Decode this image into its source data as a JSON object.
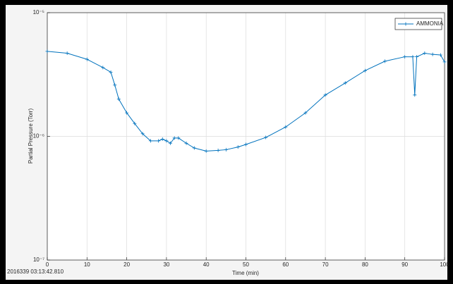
{
  "chart_data": {
    "type": "line",
    "xlabel": "Time (min)",
    "ylabel": "Partial Pressure (Torr)",
    "annotation": "2016339 03:13:42.810",
    "x": [
      0,
      5,
      10,
      14,
      16,
      17,
      18,
      20,
      22,
      24,
      26,
      28,
      29,
      30,
      31,
      32,
      33,
      35,
      37,
      40,
      43,
      45,
      48,
      50,
      55,
      60,
      65,
      70,
      75,
      80,
      85,
      90,
      92,
      92.5,
      93,
      95,
      97,
      99,
      100
    ],
    "series": [
      {
        "name": "AMMONIA",
        "color": "#0072bd",
        "values": [
          4.87e-06,
          4.7e-06,
          4.2e-06,
          3.6e-06,
          3.3e-06,
          2.6e-06,
          2e-06,
          1.55e-06,
          1.27e-06,
          1.05e-06,
          9.2e-07,
          9.2e-07,
          9.5e-07,
          9.2e-07,
          8.8e-07,
          9.7e-07,
          9.7e-07,
          8.8e-07,
          8.05e-07,
          7.6e-07,
          7.7e-07,
          7.8e-07,
          8.2e-07,
          8.6e-07,
          9.8e-07,
          1.19e-06,
          1.55e-06,
          2.16e-06,
          2.7e-06,
          3.4e-06,
          4.05e-06,
          4.4e-06,
          4.4e-06,
          2.16e-06,
          4.4e-06,
          4.7e-06,
          4.6e-06,
          4.55e-06,
          4e-06
        ]
      }
    ],
    "xlim": [
      0,
      100
    ],
    "xticks": [
      0,
      10,
      20,
      30,
      40,
      50,
      60,
      70,
      80,
      90,
      100
    ],
    "ylim": [
      1e-07,
      1e-05
    ],
    "yticks": [
      {
        "value": 1e-07,
        "label": "10⁻⁷"
      },
      {
        "value": 1e-06,
        "label": "10⁻⁶"
      },
      {
        "value": 1e-05,
        "label": "10⁻⁵"
      }
    ],
    "yscale": "log",
    "grid": true,
    "legend": "northeast"
  }
}
